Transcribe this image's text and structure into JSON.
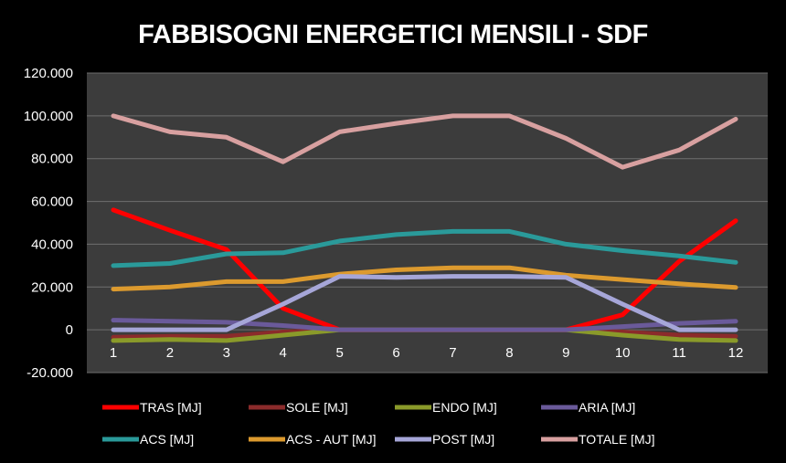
{
  "chart_data": {
    "type": "line",
    "title": "FABBISOGNI ENERGETICI MENSILI - SDF",
    "xlabel": "",
    "ylabel": "",
    "categories": [
      "1",
      "2",
      "3",
      "4",
      "5",
      "6",
      "7",
      "8",
      "9",
      "10",
      "11",
      "12"
    ],
    "ylim": [
      -20000,
      120000
    ],
    "yticks": [
      -20000,
      0,
      20000,
      40000,
      60000,
      80000,
      100000,
      120000
    ],
    "ytick_labels": [
      "-20.000",
      "0",
      "20.000",
      "40.000",
      "60.000",
      "80.000",
      "100.000",
      "120.000"
    ],
    "grid": true,
    "legend_position": "bottom",
    "series": [
      {
        "name": "TRAS [MJ]",
        "color": "#ff0000",
        "values": [
          56000,
          46500,
          37500,
          10000,
          0,
          0,
          0,
          0,
          0,
          7000,
          32000,
          51000
        ]
      },
      {
        "name": "SOLE [MJ]",
        "color": "#8b2b2b",
        "values": [
          -3500,
          -3000,
          -3000,
          -1000,
          0,
          0,
          0,
          0,
          0,
          -1000,
          -2500,
          -3000
        ]
      },
      {
        "name": "ENDO [MJ]",
        "color": "#8a9a2a",
        "values": [
          -5000,
          -4500,
          -5000,
          -2500,
          0,
          0,
          0,
          0,
          0,
          -2500,
          -4500,
          -5000
        ]
      },
      {
        "name": "ARIA [MJ]",
        "color": "#6a5a9a",
        "values": [
          4500,
          4000,
          3500,
          2000,
          0,
          0,
          0,
          0,
          0,
          1500,
          3000,
          4000
        ]
      },
      {
        "name": "ACS [MJ]",
        "color": "#2a9a9a",
        "values": [
          30000,
          31000,
          35500,
          36000,
          41500,
          44500,
          46000,
          46000,
          40000,
          37000,
          34500,
          31500
        ]
      },
      {
        "name": "ACS - AUT [MJ]",
        "color": "#dc9a2e",
        "values": [
          19000,
          20000,
          22500,
          22500,
          26000,
          28000,
          29000,
          29000,
          25500,
          23500,
          21500,
          19800
        ]
      },
      {
        "name": "POST [MJ]",
        "color": "#a6a6d8",
        "values": [
          0,
          0,
          0,
          12000,
          25000,
          24500,
          25000,
          25000,
          24500,
          12000,
          0,
          0
        ]
      },
      {
        "name": "TOTALE [MJ]",
        "color": "#d8a0a0",
        "values": [
          100000,
          92500,
          90000,
          78500,
          92500,
          96500,
          100000,
          100000,
          89500,
          76000,
          84000,
          98500
        ]
      }
    ]
  }
}
